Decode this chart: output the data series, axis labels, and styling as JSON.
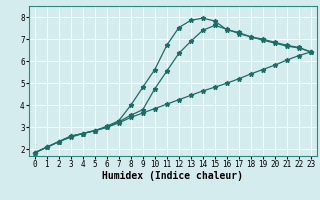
{
  "xlabel": "Humidex (Indice chaleur)",
  "bg_color": "#d4ecee",
  "grid_color": "#ffffff",
  "line_color": "#1a6e65",
  "xlim": [
    -0.5,
    23.5
  ],
  "ylim": [
    1.7,
    8.5
  ],
  "xticks": [
    0,
    1,
    2,
    3,
    4,
    5,
    6,
    7,
    8,
    9,
    10,
    11,
    12,
    13,
    14,
    15,
    16,
    17,
    18,
    19,
    20,
    21,
    22,
    23
  ],
  "yticks": [
    2,
    3,
    4,
    5,
    6,
    7,
    8
  ],
  "line1_x": [
    0,
    1,
    2,
    3,
    4,
    5,
    6,
    7,
    8,
    9,
    10,
    11,
    12,
    13,
    14,
    15,
    16,
    17,
    18,
    19,
    20,
    21,
    22,
    23
  ],
  "line1_y": [
    1.85,
    2.1,
    2.35,
    2.55,
    2.72,
    2.85,
    3.0,
    3.2,
    3.45,
    3.65,
    3.85,
    4.05,
    4.25,
    4.45,
    4.65,
    4.82,
    5.0,
    5.2,
    5.42,
    5.62,
    5.82,
    6.05,
    6.25,
    6.42
  ],
  "line2_x": [
    0,
    1,
    2,
    3,
    4,
    5,
    6,
    7,
    8,
    9,
    10,
    11,
    12,
    13,
    14,
    15,
    16,
    17,
    18,
    19,
    20,
    21,
    22,
    23
  ],
  "line2_y": [
    1.85,
    2.1,
    2.35,
    2.6,
    2.72,
    2.85,
    3.0,
    3.25,
    3.55,
    3.8,
    4.75,
    5.55,
    6.35,
    6.9,
    7.4,
    7.62,
    7.45,
    7.25,
    7.1,
    6.95,
    6.82,
    6.68,
    6.6,
    6.42
  ],
  "line3_x": [
    0,
    1,
    2,
    3,
    4,
    5,
    6,
    7,
    8,
    9,
    10,
    11,
    12,
    13,
    14,
    15,
    16,
    17,
    18,
    19,
    20,
    21,
    22,
    23
  ],
  "line3_y": [
    1.85,
    2.1,
    2.35,
    2.6,
    2.72,
    2.85,
    3.05,
    3.3,
    4.0,
    4.82,
    5.62,
    6.72,
    7.52,
    7.85,
    7.95,
    7.82,
    7.42,
    7.3,
    7.1,
    7.0,
    6.85,
    6.72,
    6.62,
    6.42
  ],
  "marker": "*",
  "markersize": 3.5,
  "linewidth": 0.9,
  "tick_fontsize": 5.5,
  "xlabel_fontsize": 7.0
}
